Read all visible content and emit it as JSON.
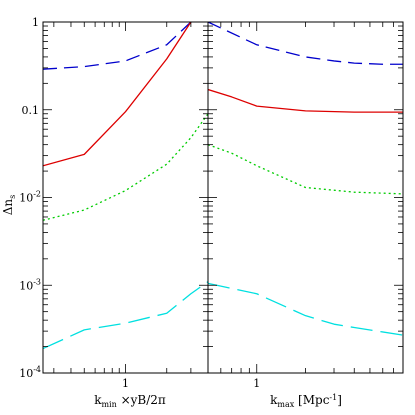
{
  "chart_data": [
    {
      "panel": "left",
      "type": "line",
      "xscale": "log",
      "yscale": "log",
      "xlabel_main": "k",
      "xlabel_sub": "min",
      "xlabel_rest": " ×yB/2π",
      "ylabel_main": "Δn",
      "ylabel_sub": "s",
      "xlim": [
        0.25,
        4.0
      ],
      "ylim": [
        0.0001,
        1
      ],
      "x_ticklabels": [
        {
          "value": 1,
          "label": "1"
        }
      ],
      "y_ticklabels": [
        {
          "value": 1,
          "label": "1"
        },
        {
          "value": 0.1,
          "label": "0.1"
        },
        {
          "value": 0.01,
          "label": "10",
          "exp": "-2"
        },
        {
          "value": 0.001,
          "label": "10",
          "exp": "-3"
        },
        {
          "value": 0.0001,
          "label": "10",
          "exp": "-4"
        }
      ],
      "series": [
        {
          "color": "#0000cc",
          "dash": "14,7",
          "x": [
            0.25,
            0.5,
            1.0,
            2.0,
            3.0
          ],
          "y": [
            0.29,
            0.31,
            0.36,
            0.55,
            1.0
          ]
        },
        {
          "color": "#dd0000",
          "dash": "",
          "x": [
            0.25,
            0.5,
            1.0,
            2.0,
            3.0
          ],
          "y": [
            0.023,
            0.031,
            0.095,
            0.38,
            1.0
          ]
        },
        {
          "color": "#00cc00",
          "dash": "2,3",
          "x": [
            0.25,
            0.5,
            1.0,
            2.0,
            3.0,
            4.0
          ],
          "y": [
            0.0055,
            0.0072,
            0.012,
            0.024,
            0.048,
            0.09
          ]
        },
        {
          "color": "#00e0e0",
          "dash": "22,8",
          "x": [
            0.25,
            0.5,
            1.0,
            2.0,
            3.0,
            4.0
          ],
          "y": [
            0.00019,
            0.00031,
            0.00037,
            0.00048,
            0.0008,
            0.0011
          ]
        }
      ]
    },
    {
      "panel": "right",
      "type": "line",
      "xscale": "log",
      "yscale": "log",
      "xlabel_main": "k",
      "xlabel_sub": "max",
      "xlabel_rest": " [Mpc",
      "xlabel_exp": "-1",
      "xlabel_end": "]",
      "xlim": [
        0.5,
        8.0
      ],
      "ylim": [
        0.0001,
        1
      ],
      "x_ticklabels": [
        {
          "value": 1,
          "label": "1"
        }
      ],
      "series": [
        {
          "color": "#0000cc",
          "dash": "14,7",
          "x": [
            0.5,
            1.0,
            2.0,
            3.0,
            4.0,
            6.0,
            8.0
          ],
          "y": [
            1.0,
            0.55,
            0.4,
            0.36,
            0.34,
            0.33,
            0.33
          ]
        },
        {
          "color": "#dd0000",
          "dash": "",
          "x": [
            0.5,
            0.7,
            1.0,
            2.0,
            4.0,
            8.0
          ],
          "y": [
            0.17,
            0.14,
            0.11,
            0.097,
            0.094,
            0.094
          ]
        },
        {
          "color": "#00cc00",
          "dash": "2,3",
          "x": [
            0.5,
            0.7,
            1.0,
            2.0,
            4.0,
            8.0
          ],
          "y": [
            0.04,
            0.032,
            0.023,
            0.013,
            0.0115,
            0.011
          ]
        },
        {
          "color": "#00e0e0",
          "dash": "22,8",
          "x": [
            0.5,
            1.0,
            2.0,
            3.0,
            4.0,
            8.0
          ],
          "y": [
            0.00105,
            0.0008,
            0.00045,
            0.00036,
            0.00033,
            0.00027
          ]
        }
      ]
    }
  ]
}
